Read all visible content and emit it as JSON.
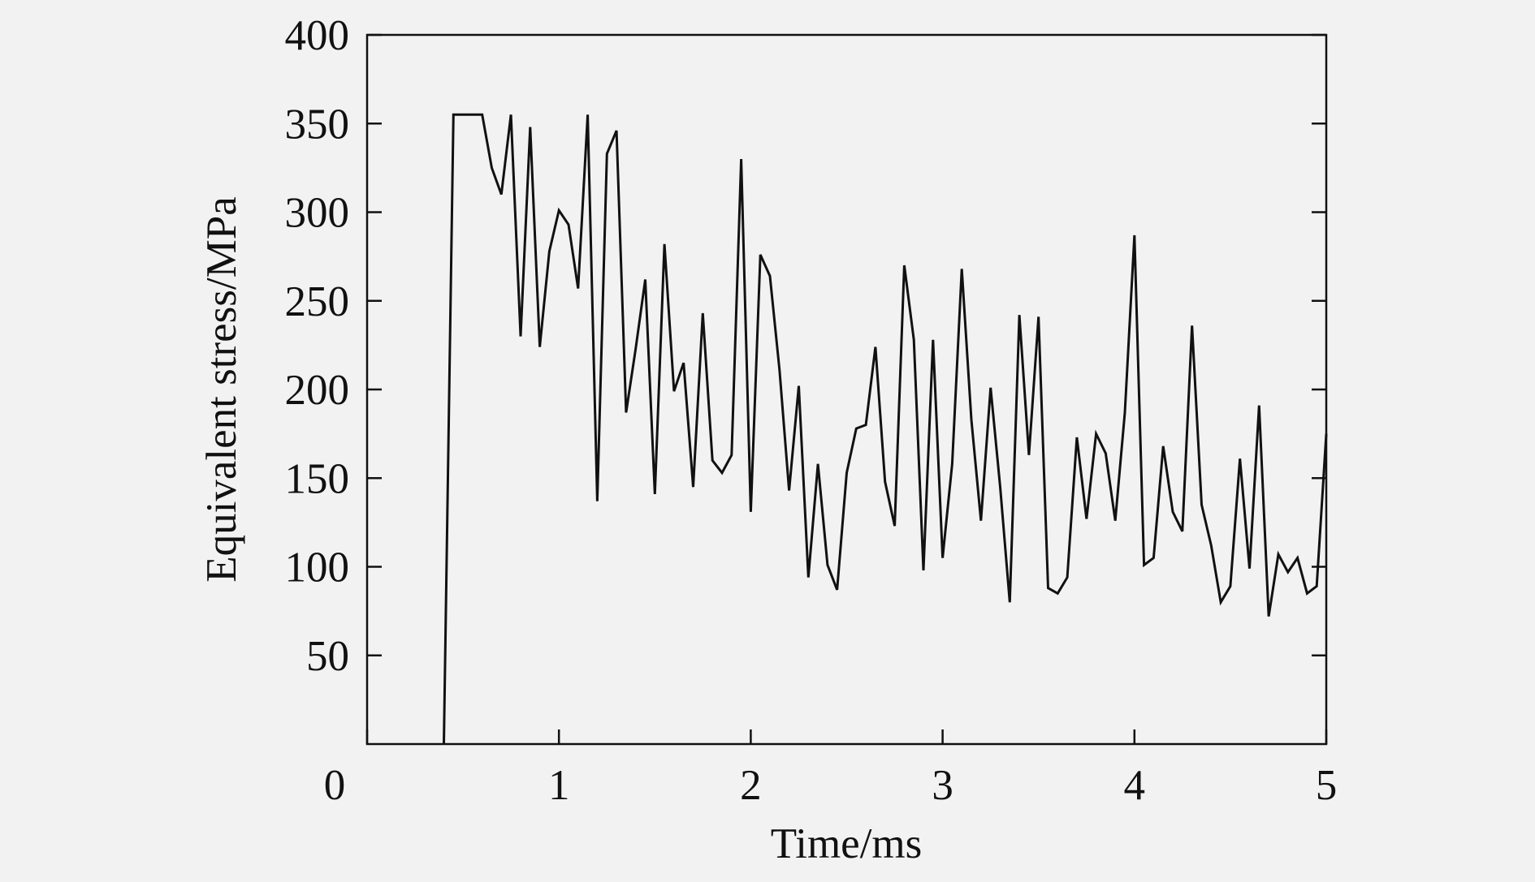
{
  "chart_data": {
    "type": "line",
    "x_label": "Time/ms",
    "y_label": "Equivalent stress/MPa",
    "xlim": [
      0,
      5
    ],
    "ylim": [
      0,
      400
    ],
    "xticks": [
      0,
      1,
      2,
      3,
      4,
      5
    ],
    "yticks": [
      50,
      100,
      150,
      200,
      250,
      300,
      350,
      400
    ],
    "grid": false,
    "x": [
      0.4,
      0.45,
      0.6,
      0.65,
      0.7,
      0.75,
      0.8,
      0.85,
      0.9,
      0.95,
      1.0,
      1.05,
      1.1,
      1.15,
      1.2,
      1.25,
      1.3,
      1.35,
      1.4,
      1.45,
      1.5,
      1.55,
      1.6,
      1.65,
      1.7,
      1.75,
      1.8,
      1.85,
      1.9,
      1.95,
      2.0,
      2.05,
      2.1,
      2.15,
      2.2,
      2.25,
      2.3,
      2.35,
      2.4,
      2.45,
      2.5,
      2.55,
      2.6,
      2.65,
      2.7,
      2.75,
      2.8,
      2.85,
      2.9,
      2.95,
      3.0,
      3.05,
      3.1,
      3.15,
      3.2,
      3.25,
      3.3,
      3.35,
      3.4,
      3.45,
      3.5,
      3.55,
      3.6,
      3.65,
      3.7,
      3.75,
      3.8,
      3.85,
      3.9,
      3.95,
      4.0,
      4.05,
      4.1,
      4.15,
      4.2,
      4.25,
      4.3,
      4.35,
      4.4,
      4.45,
      4.5,
      4.55,
      4.6,
      4.65,
      4.7,
      4.75,
      4.8,
      4.85,
      4.9,
      4.95,
      5.0
    ],
    "series": [
      {
        "color": "#111111",
        "values": [
          0,
          355,
          355,
          325,
          310,
          355,
          230,
          348,
          224,
          278,
          301,
          293,
          257,
          355,
          137,
          333,
          346,
          187,
          223,
          262,
          141,
          282,
          199,
          215,
          145,
          243,
          160,
          153,
          163,
          330,
          131,
          276,
          264,
          211,
          143,
          202,
          94,
          158,
          101,
          87,
          153,
          178,
          180,
          224,
          148,
          123,
          270,
          228,
          98,
          228,
          105,
          158,
          268,
          183,
          126,
          201,
          145,
          80,
          242,
          163,
          241,
          88,
          85,
          94,
          173,
          127,
          175,
          164,
          126,
          187,
          287,
          101,
          105,
          168,
          131,
          120,
          236,
          135,
          112,
          80,
          89,
          161,
          99,
          191,
          72,
          107,
          97,
          105,
          85,
          89,
          175
        ]
      }
    ]
  }
}
